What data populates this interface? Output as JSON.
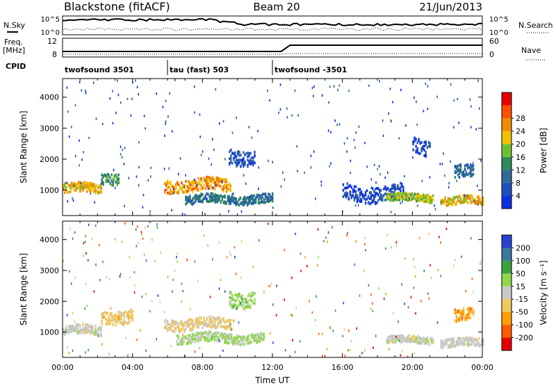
{
  "header": {
    "station": "Blackstone (fitACF)",
    "beam": "Beam 20",
    "date": "21/Jun/2013"
  },
  "side_labels": {
    "nsky": "N.Sky",
    "nsearch": "N.Search",
    "freq_line1": "Freq.",
    "freq_line2": "[MHz]",
    "nave": "Nave",
    "cpid": "CPID"
  },
  "noise_axis": {
    "left_ticks": [
      "10^5",
      "10^0"
    ],
    "right_ticks": [
      "10^5",
      "10^0"
    ]
  },
  "freq_axis": {
    "left_ticks": [
      "12",
      "8"
    ],
    "right_ticks": [
      "60",
      "0"
    ]
  },
  "cpid_segments": [
    {
      "label": "twofsound 3501",
      "start_hour": 0
    },
    {
      "label": "tau (fast) 503",
      "start_hour": 6
    },
    {
      "label": "twofsound -3501",
      "start_hour": 12
    }
  ],
  "colors": {
    "power_scale": [
      "#1030e0",
      "#2050c0",
      "#306a96",
      "#2e8a5c",
      "#6cc030",
      "#f0c000",
      "#f08a00",
      "#ff5000",
      "#e80000"
    ],
    "velocity_scale": [
      "#e80000",
      "#ff5a00",
      "#ff9c00",
      "#f0c860",
      "#c8c8c8",
      "#8fd84a",
      "#3aa040",
      "#3a78a0",
      "#2a40d0"
    ]
  },
  "chart_data": [
    {
      "type": "heatmap",
      "name": "Power",
      "xlabel": "",
      "ylabel": "Slant Range [km]",
      "x_ticks": [
        "00:00",
        "04:00",
        "08:00",
        "12:00",
        "16:00",
        "20:00",
        "00:00"
      ],
      "x_range_hours": [
        0,
        24
      ],
      "y_ticks": [
        1000,
        2000,
        3000,
        4000
      ],
      "ylim": [
        180,
        4600
      ],
      "colorbar_label": "Power [dB]",
      "colorbar_ticks": [
        4,
        8,
        12,
        16,
        20,
        24,
        28
      ],
      "colorbar_range": [
        0,
        32
      ],
      "regions": [
        {
          "t_start": 0.0,
          "t_end": 2.2,
          "r_center": 1050,
          "r_half": 150,
          "level": 26
        },
        {
          "t_start": 2.2,
          "t_end": 3.2,
          "r_center": 1400,
          "r_half": 180,
          "level": 16
        },
        {
          "t_start": 5.8,
          "t_end": 9.6,
          "r_center": 1150,
          "r_half": 200,
          "level": 28
        },
        {
          "t_start": 7.0,
          "t_end": 12.0,
          "r_center": 700,
          "r_half": 140,
          "level": 14
        },
        {
          "t_start": 9.5,
          "t_end": 11.0,
          "r_center": 2100,
          "r_half": 250,
          "level": 10
        },
        {
          "t_start": 16.0,
          "t_end": 19.5,
          "r_center": 900,
          "r_half": 250,
          "level": 8
        },
        {
          "t_start": 18.5,
          "t_end": 21.2,
          "r_center": 750,
          "r_half": 120,
          "level": 22
        },
        {
          "t_start": 21.6,
          "t_end": 24.0,
          "r_center": 650,
          "r_half": 130,
          "level": 26
        },
        {
          "t_start": 22.4,
          "t_end": 23.5,
          "r_center": 1550,
          "r_half": 200,
          "level": 12
        },
        {
          "t_start": 20.0,
          "t_end": 21.0,
          "r_center": 2400,
          "r_half": 250,
          "level": 8
        }
      ]
    },
    {
      "type": "heatmap",
      "name": "Velocity",
      "xlabel": "Time UT",
      "ylabel": "Slant Range [km]",
      "x_ticks": [
        "00:00",
        "04:00",
        "08:00",
        "12:00",
        "16:00",
        "20:00",
        "00:00"
      ],
      "x_range_hours": [
        0,
        24
      ],
      "y_ticks": [
        1000,
        2000,
        3000,
        4000
      ],
      "ylim": [
        180,
        4600
      ],
      "colorbar_label": "Velocity [m s⁻¹]",
      "colorbar_ticks": [
        "-200",
        "-100",
        "-50",
        "-15",
        "15",
        "50",
        "100",
        "200"
      ],
      "colorbar_range": [
        -250,
        250
      ],
      "regions": [
        {
          "t_start": 0.0,
          "t_end": 2.2,
          "r_center": 1050,
          "r_half": 150,
          "value": 0
        },
        {
          "t_start": 2.2,
          "t_end": 4.0,
          "r_center": 1500,
          "r_half": 220,
          "value": -60
        },
        {
          "t_start": 5.8,
          "t_end": 9.6,
          "r_center": 1250,
          "r_half": 180,
          "value": -40
        },
        {
          "t_start": 6.5,
          "t_end": 11.5,
          "r_center": 800,
          "r_half": 150,
          "value": 40
        },
        {
          "t_start": 9.5,
          "t_end": 11.0,
          "r_center": 2100,
          "r_half": 250,
          "value": 60
        },
        {
          "t_start": 18.5,
          "t_end": 21.2,
          "r_center": 750,
          "r_half": 120,
          "value": 0
        },
        {
          "t_start": 21.6,
          "t_end": 24.0,
          "r_center": 650,
          "r_half": 130,
          "value": 0
        },
        {
          "t_start": 22.4,
          "t_end": 23.5,
          "r_center": 1500,
          "r_half": 200,
          "value": -120
        }
      ]
    }
  ]
}
